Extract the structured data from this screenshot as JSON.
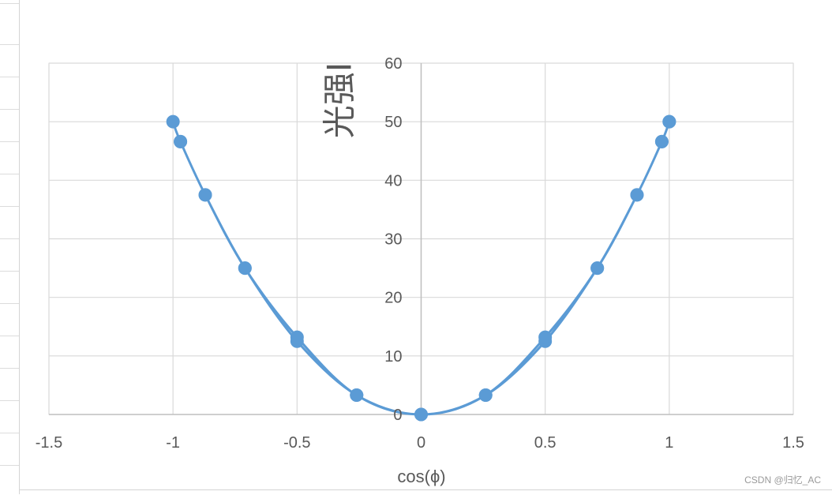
{
  "chart_data": {
    "type": "scatter",
    "title": "",
    "xlabel": "cos(ϕ)",
    "ylabel": "光强I",
    "xlim": [
      -1.5,
      1.5
    ],
    "ylim": [
      0,
      60
    ],
    "xticks": [
      -1.5,
      -1,
      -0.5,
      0,
      0.5,
      1,
      1.5
    ],
    "yticks": [
      0,
      10,
      20,
      30,
      40,
      50,
      60
    ],
    "grid": true,
    "legend": "none",
    "color": "#5b9bd5",
    "smooth_line": true,
    "series": [
      {
        "points": [
          [
            1.0,
            50.0
          ],
          [
            0.97,
            46.6
          ],
          [
            0.87,
            37.5
          ],
          [
            0.71,
            25.0
          ],
          [
            0.5,
            12.5
          ],
          [
            0.26,
            3.3
          ],
          [
            0.0,
            0.0
          ],
          [
            -0.26,
            3.3
          ],
          [
            -0.5,
            12.5
          ],
          [
            -0.71,
            25.0
          ],
          [
            -0.87,
            37.5
          ],
          [
            -0.97,
            46.6
          ],
          [
            -1.0,
            50.0
          ],
          [
            -0.97,
            46.6
          ],
          [
            -0.87,
            37.5
          ],
          [
            -0.71,
            25.0
          ],
          [
            -0.5,
            13.2
          ],
          [
            -0.26,
            3.3
          ],
          [
            0.0,
            0.0
          ],
          [
            0.26,
            3.3
          ],
          [
            0.5,
            13.2
          ],
          [
            0.71,
            25.0
          ],
          [
            0.87,
            37.5
          ],
          [
            0.97,
            46.6
          ],
          [
            1.0,
            50.0
          ]
        ]
      }
    ]
  },
  "watermark": "CSDN @归忆_AC"
}
